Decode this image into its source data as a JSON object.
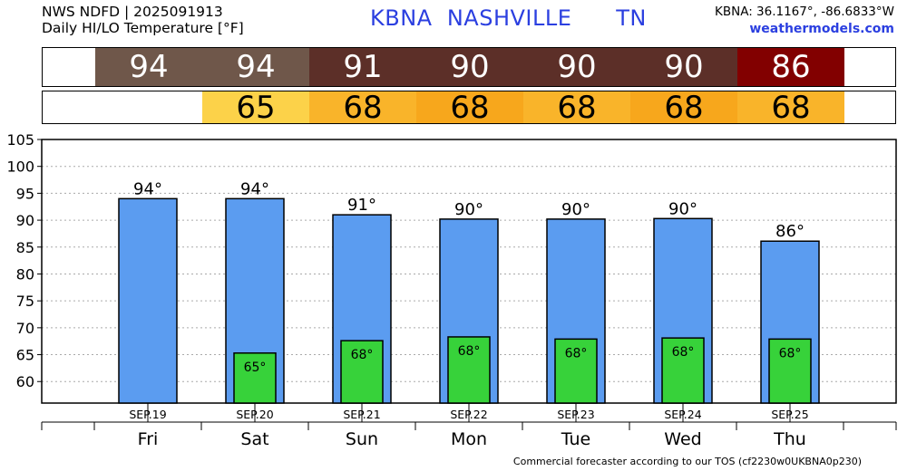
{
  "header": {
    "line1": "NWS NDFD | 2025091913",
    "line2": "Daily HI/LO Temperature [°F]",
    "station_id": "KBNA",
    "station_name": "NASHVILLE",
    "state": "TN",
    "coords": "KBNA: 36.1167°, -86.6833°W",
    "site": "weathermodels.com"
  },
  "hi_strip": [
    {
      "value": "94",
      "color": "#6f574a"
    },
    {
      "value": "94",
      "color": "#6f574a"
    },
    {
      "value": "91",
      "color": "#5c2f28"
    },
    {
      "value": "90",
      "color": "#5c2f28"
    },
    {
      "value": "90",
      "color": "#5c2f28"
    },
    {
      "value": "90",
      "color": "#5c2f28"
    },
    {
      "value": "86",
      "color": "#820000"
    }
  ],
  "lo_strip": [
    {
      "value": "",
      "color": "#ffffff"
    },
    {
      "value": "65",
      "color": "#fcd249"
    },
    {
      "value": "68",
      "color": "#f9b42a"
    },
    {
      "value": "68",
      "color": "#f7a71c"
    },
    {
      "value": "68",
      "color": "#f9b42a"
    },
    {
      "value": "68",
      "color": "#f7a71c"
    },
    {
      "value": "68",
      "color": "#f9b42a"
    }
  ],
  "chart_data": {
    "type": "bar",
    "categories": [
      "SEP.19",
      "SEP.20",
      "SEP.21",
      "SEP.22",
      "SEP.23",
      "SEP.24",
      "SEP.25"
    ],
    "days": [
      "Fri",
      "Sat",
      "Sun",
      "Mon",
      "Tue",
      "Wed",
      "Thu"
    ],
    "ylim": [
      56,
      105
    ],
    "yticks": [
      60,
      65,
      70,
      75,
      80,
      85,
      90,
      95,
      100,
      105
    ],
    "grid": true,
    "series": [
      {
        "name": "HI",
        "color": "#5b9cf0",
        "values": [
          94,
          94,
          91,
          90.2,
          90.2,
          90.3,
          86.1
        ],
        "labels": [
          "94°",
          "94°",
          "91°",
          "90°",
          "90°",
          "90°",
          "86°"
        ]
      },
      {
        "name": "LO",
        "color": "#37d23a",
        "values": [
          null,
          65.3,
          67.6,
          68.3,
          67.9,
          68.1,
          67.9
        ],
        "labels": [
          "",
          "65°",
          "68°",
          "68°",
          "68°",
          "68°",
          "68°"
        ]
      }
    ]
  },
  "footer": "Commercial forecaster according to our TOS (cf2230w0UKBNA0p230)"
}
